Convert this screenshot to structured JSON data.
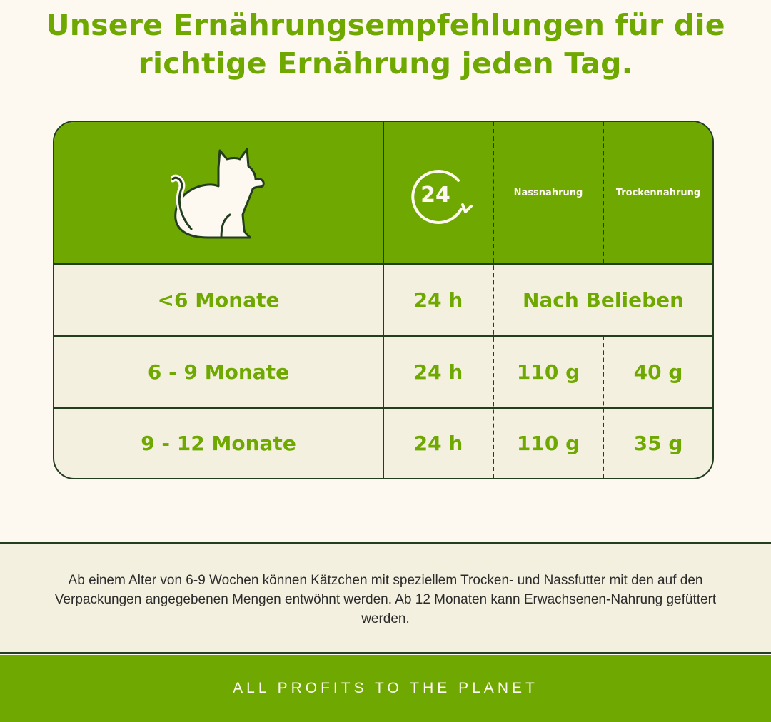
{
  "headline": {
    "line1": "Unsere Ernährungsempfehlungen für die",
    "line2": "richtige Ernährung jeden Tag."
  },
  "table": {
    "header": {
      "icon_age": "cat-icon",
      "icon_period": "clock-24-icon",
      "period_label": "24",
      "wet_label": "Nassnahrung",
      "dry_label": "Trockennahrung"
    },
    "rows": [
      {
        "age": "<6 Monate",
        "period": "24 h",
        "combined": "Nach Belieben"
      },
      {
        "age": "6 - 9 Monate",
        "period": "24 h",
        "wet": "110 g",
        "dry": "40 g"
      },
      {
        "age": "9 - 12 Monate",
        "period": "24 h",
        "wet": "110 g",
        "dry": "35 g"
      }
    ]
  },
  "note": "Ab einem Alter von 6-9 Wochen können Kätzchen mit speziellem Trocken- und Nassfutter mit den auf den Verpackungen angegebenen Mengen entwöhnt werden. Ab 12 Monaten kann Erwachsenen-Nahrung gefüttert werden.",
  "footer": "ALL PROFITS TO THE PLANET",
  "colors": {
    "accent": "#6fa800",
    "dark": "#233d1f",
    "cream": "#fdf9f0",
    "row_bg": "#f4f0df"
  }
}
